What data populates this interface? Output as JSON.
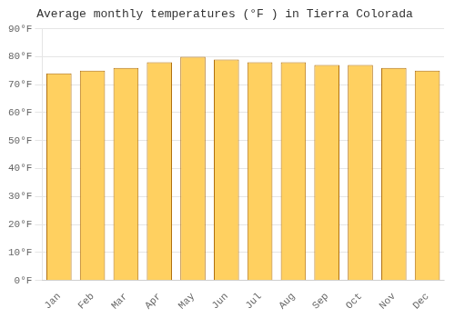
{
  "chart_data": {
    "type": "bar",
    "title": "Average monthly temperatures (°F ) in Tierra Colorada",
    "categories": [
      "Jan",
      "Feb",
      "Mar",
      "Apr",
      "May",
      "Jun",
      "Jul",
      "Aug",
      "Sep",
      "Oct",
      "Nov",
      "Dec"
    ],
    "values": [
      74,
      75,
      76,
      78,
      80,
      79,
      78,
      78,
      77,
      77,
      76,
      75
    ],
    "color": "#FFD060",
    "ylim": [
      0,
      90
    ],
    "yticks": [
      {
        "value": 0,
        "label": "0°F"
      },
      {
        "value": 10,
        "label": "10°F"
      },
      {
        "value": 20,
        "label": "20°F"
      },
      {
        "value": 30,
        "label": "30°F"
      },
      {
        "value": 40,
        "label": "40°F"
      },
      {
        "value": 50,
        "label": "50°F"
      },
      {
        "value": 60,
        "label": "60°F"
      },
      {
        "value": 70,
        "label": "70°F"
      },
      {
        "value": 80,
        "label": "80°F"
      },
      {
        "value": 90,
        "label": "90°F"
      }
    ],
    "grid": true
  }
}
